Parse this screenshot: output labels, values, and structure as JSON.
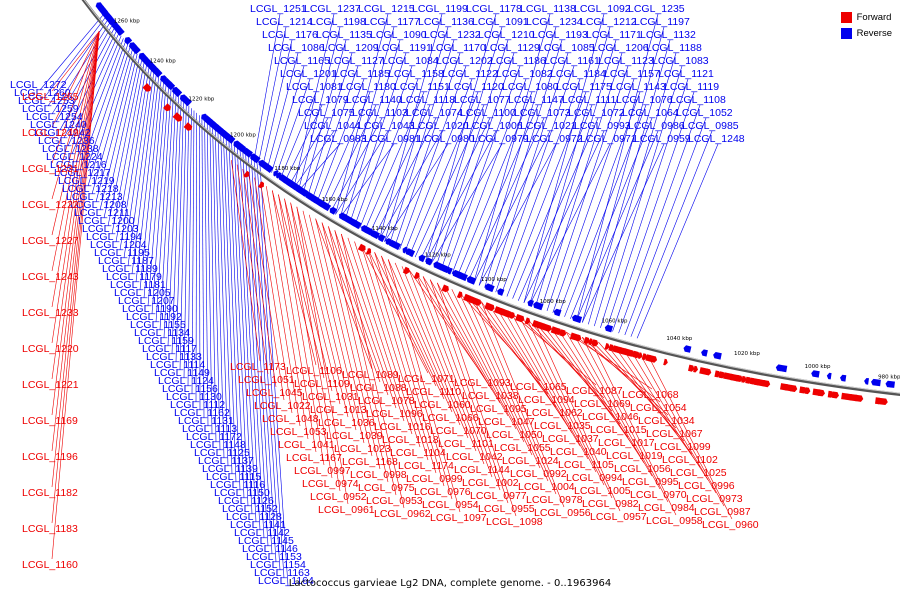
{
  "legend": [
    {
      "label": "Forward",
      "color": "#ee0000"
    },
    {
      "label": "Reverse",
      "color": "#0000ee"
    }
  ],
  "caption": "Lactococcus garvieae Lg2 DNA, complete genome. - 0..1963964",
  "ruler": {
    "labels": [
      "1260 kbp",
      "1240 kbp",
      "1220 kbp",
      "1200 kbp",
      "1180 kbp",
      "1160 kbp",
      "1140 kbp",
      "1120 kbp",
      "1100 kbp",
      "1080 kbp",
      "1060 kbp",
      "1040 kbp",
      "1020 kbp",
      "1000 kbp",
      "980 kbp"
    ]
  },
  "genes": {
    "reverse": [
      "LCGL_1272",
      "LCGL_1260",
      "LCGL_1253",
      "LCGL_1259",
      "LCGL_1254",
      "LCGL_1240",
      "LCGL_1242",
      "LCGL_1236",
      "LCGL_1238",
      "LCGL_1224",
      "LCGL_1216",
      "LCGL_1217",
      "LCGL_1219",
      "LCGL_1218",
      "LCGL_1213",
      "LCGL_1208",
      "LCGL_1211",
      "LCGL_1200",
      "LCGL_1203",
      "LCGL_1194",
      "LCGL_1204",
      "LCGL_1195",
      "LCGL_1187",
      "LCGL_1189",
      "LCGL_1179",
      "LCGL_1181",
      "LCGL_1205",
      "LCGL_1207",
      "LCGL_1190",
      "LCGL_1192",
      "LCGL_1155",
      "LCGL_1134",
      "LCGL_1159",
      "LCGL_1117",
      "LCGL_1133",
      "LCGL_1114",
      "LCGL_1149",
      "LCGL_1124",
      "LCGL_1156",
      "LCGL_1130",
      "LCGL_1112",
      "LCGL_1162",
      "LCGL_1131",
      "LCGL_1113",
      "LCGL_1172",
      "LCGL_1148",
      "LCGL_1125",
      "LCGL_1137",
      "LCGL_1139",
      "LCGL_1115",
      "LCGL_1116",
      "LCGL_1150",
      "LCGL_1126",
      "LCGL_1152",
      "LCGL_1128",
      "LCGL_1141",
      "LCGL_1142",
      "LCGL_1145",
      "LCGL_1146",
      "LCGL_1153",
      "LCGL_1154",
      "LCGL_1163",
      "LCGL_1164",
      "LCGL_1251",
      "LCGL_1237",
      "LCGL_1215",
      "LCGL_1199",
      "LCGL_1178",
      "LCGL_1138",
      "LCGL_1092",
      "LCGL_1235",
      "LCGL_1214",
      "LCGL_1198",
      "LCGL_1177",
      "LCGL_1136",
      "LCGL_1091",
      "LCGL_1234",
      "LCGL_1212",
      "LCGL_1197",
      "LCGL_1176",
      "LCGL_1135",
      "LCGL_1090",
      "LCGL_1232",
      "LCGL_1210",
      "LCGL_1193",
      "LCGL_1171",
      "LCGL_1132",
      "LCGL_1086",
      "LCGL_1209",
      "LCGL_1191",
      "LCGL_1170",
      "LCGL_1129",
      "LCGL_1085",
      "LCGL_1206",
      "LCGL_1188",
      "LCGL_1165",
      "LCGL_1127",
      "LCGL_1084",
      "LCGL_1202",
      "LCGL_1186",
      "LCGL_1161",
      "LCGL_1123",
      "LCGL_1083",
      "LCGL_1201",
      "LCGL_1185",
      "LCGL_1158",
      "LCGL_1122",
      "LCGL_1082",
      "LCGL_1184",
      "LCGL_1157",
      "LCGL_1121",
      "LCGL_1081",
      "LCGL_1180",
      "LCGL_1151",
      "LCGL_1120",
      "LCGL_1080",
      "LCGL_1175",
      "LCGL_1143",
      "LCGL_1119",
      "LCGL_1079",
      "LCGL_1140",
      "LCGL_1118",
      "LCGL_1077",
      "LCGL_1147",
      "LCGL_1111",
      "LCGL_1076",
      "LCGL_1108",
      "LCGL_1075",
      "LCGL_1103",
      "LCGL_1074",
      "LCGL_1100",
      "LCGL_1073",
      "LCGL_1072",
      "LCGL_1064",
      "LCGL_1052",
      "LCGL_1044",
      "LCGL_1043",
      "LCGL_1020",
      "LCGL_1006",
      "LCGL_1021",
      "LCGL_0993",
      "LCGL_0986",
      "LCGL_0985",
      "LCGL_0983",
      "LCGL_0981",
      "LCGL_0980",
      "LCGL_0979",
      "LCGL_0972",
      "LCGL_0971",
      "LCGL_0959",
      "LCGL_1248",
      "LCGL_1246"
    ],
    "forward": [
      "LCGL_1265",
      "LCGL_1249",
      "LCGL_1231",
      "LCGL_1222",
      "LCGL_1227",
      "LCGL_1243",
      "LCGL_1233",
      "LCGL_1220",
      "LCGL_1221",
      "LCGL_1169",
      "LCGL_1196",
      "LCGL_1182",
      "LCGL_1183",
      "LCGL_1160",
      "LCGL_1173",
      "LCGL_1106",
      "LCGL_1089",
      "LCGL_1071",
      "LCGL_1093",
      "LCGL_1065",
      "LCGL_1087",
      "LCGL_1068",
      "LCGL_1051",
      "LCGL_1109",
      "LCGL_1088",
      "LCGL_1110",
      "LCGL_1038",
      "LCGL_1094",
      "LCGL_1069",
      "LCGL_1054",
      "LCGL_1045",
      "LCGL_1031",
      "LCGL_1078",
      "LCGL_1060",
      "LCGL_1095",
      "LCGL_1062",
      "LCGL_1046",
      "LCGL_1034",
      "LCGL_1022",
      "LCGL_1013",
      "LCGL_1096",
      "LCGL_1066",
      "LCGL_1047",
      "LCGL_1035",
      "LCGL_1015",
      "LCGL_1067",
      "LCGL_1048",
      "LCGL_1036",
      "LCGL_1016",
      "LCGL_1070",
      "LCGL_1050",
      "LCGL_1037",
      "LCGL_1017",
      "LCGL_1099",
      "LCGL_1053",
      "LCGL_1039",
      "LCGL_1018",
      "LCGL_1101",
      "LCGL_1055",
      "LCGL_1040",
      "LCGL_1019",
      "LCGL_1102",
      "LCGL_1041",
      "LCGL_1023",
      "LCGL_1104",
      "LCGL_1042",
      "LCGL_1024",
      "LCGL_1105",
      "LCGL_1056",
      "LCGL_1025",
      "LCGL_1167",
      "LCGL_1168",
      "LCGL_1174",
      "LCGL_1144",
      "LCGL_0992",
      "LCGL_0994",
      "LCGL_0995",
      "LCGL_0996",
      "LCGL_0997",
      "LCGL_0998",
      "LCGL_0999",
      "LCGL_1002",
      "LCGL_1004",
      "LCGL_1005",
      "LCGL_0970",
      "LCGL_0973",
      "LCGL_0974",
      "LCGL_0975",
      "LCGL_0976",
      "LCGL_0977",
      "LCGL_0978",
      "LCGL_0982",
      "LCGL_0984",
      "LCGL_0987",
      "LCGL_0952",
      "LCGL_0953",
      "LCGL_0954",
      "LCGL_0955",
      "LCGL_0956",
      "LCGL_0957",
      "LCGL_0958",
      "LCGL_0960",
      "LCGL_0961",
      "LCGL_0962",
      "LCGL_1097",
      "LCGL_1098"
    ]
  }
}
